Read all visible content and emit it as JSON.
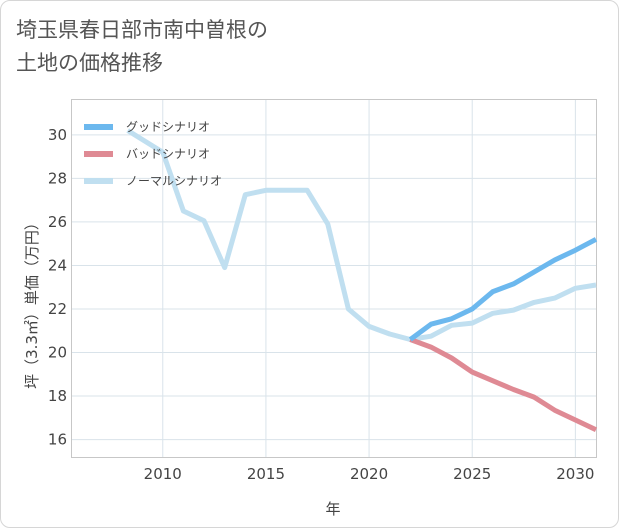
{
  "chart_data": {
    "type": "line",
    "title_line1": "埼玉県春日部市南中曽根の",
    "title_line2": "土地の価格推移",
    "xlabel": "年",
    "ylabel": "坪（3.3㎡）単価（万円）",
    "xlim": [
      2005.6,
      2031
    ],
    "ylim": [
      15.2,
      31.6
    ],
    "x_ticks": [
      2010,
      2015,
      2020,
      2025,
      2030
    ],
    "y_ticks": [
      16,
      18,
      20,
      22,
      24,
      26,
      28,
      30
    ],
    "series": [
      {
        "name": "グッドシナリオ",
        "color": "#6cb8ee",
        "x": [
          2022,
          2023,
          2024,
          2025,
          2026,
          2027,
          2028,
          2029,
          2030,
          2031
        ],
        "values": [
          20.6,
          21.3,
          21.55,
          22.0,
          22.8,
          23.15,
          23.7,
          24.25,
          24.7,
          25.2
        ]
      },
      {
        "name": "バッドシナリオ",
        "color": "#df8a94",
        "x": [
          2022,
          2023,
          2024,
          2025,
          2026,
          2027,
          2028,
          2029,
          2030,
          2031
        ],
        "values": [
          20.6,
          20.25,
          19.75,
          19.1,
          18.7,
          18.3,
          17.95,
          17.35,
          16.9,
          16.45
        ]
      },
      {
        "name": "ノーマルシナリオ",
        "color": "#c0dff0",
        "x": [
          2008.3,
          2010,
          2011,
          2012,
          2013,
          2014,
          2015,
          2016,
          2017,
          2018,
          2019,
          2020,
          2021,
          2022,
          2023,
          2024,
          2025,
          2026,
          2027,
          2028,
          2029,
          2030,
          2031
        ],
        "values": [
          30.2,
          29.2,
          26.5,
          26.05,
          23.9,
          27.25,
          27.45,
          27.45,
          27.45,
          25.9,
          22.0,
          21.2,
          20.85,
          20.6,
          20.75,
          21.25,
          21.35,
          21.8,
          21.95,
          22.3,
          22.5,
          22.95,
          23.1
        ]
      }
    ]
  }
}
